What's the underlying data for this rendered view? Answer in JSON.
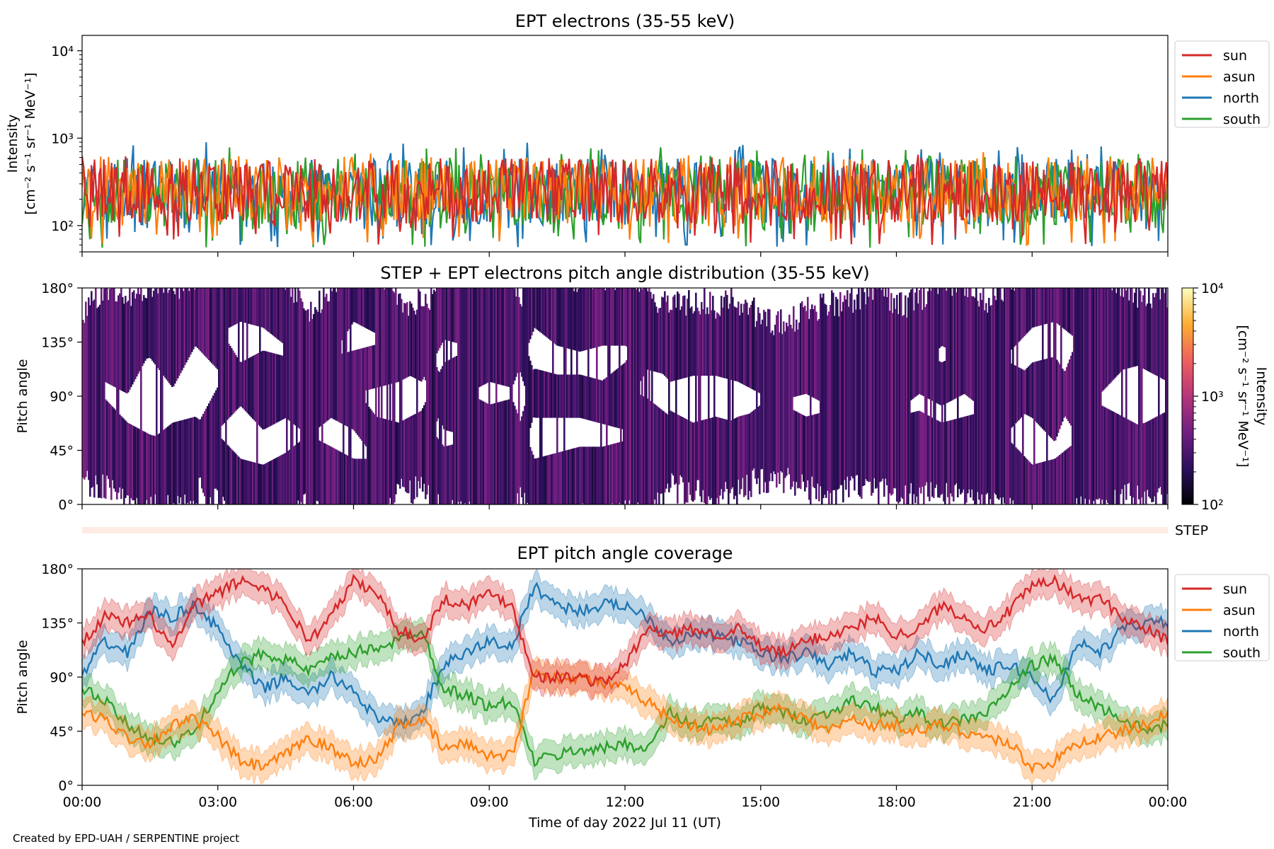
{
  "chart_data": [
    {
      "type": "line",
      "title": "EPT electrons (35-55 keV)",
      "ylabel_lines": [
        "Intensity",
        "[cm⁻² s⁻¹ sr⁻¹ MeV⁻¹]"
      ],
      "yscale": "log",
      "ylim": [
        50,
        15000
      ],
      "yticks": [
        "10⁴",
        "10³",
        "10²"
      ],
      "xlim_hours": [
        0,
        24
      ],
      "legend": "upper-right-outside",
      "series": [
        {
          "name": "sun",
          "color": "#d62728",
          "typical": 250,
          "low": 60,
          "high": 650
        },
        {
          "name": "asun",
          "color": "#ff7f0e",
          "typical": 260,
          "low": 60,
          "high": 700
        },
        {
          "name": "north",
          "color": "#1f77b4",
          "typical": 250,
          "low": 55,
          "high": 900
        },
        {
          "name": "south",
          "color": "#2ca02c",
          "typical": 240,
          "low": 55,
          "high": 800
        }
      ]
    },
    {
      "type": "heatmap",
      "title": "STEP + EPT electrons pitch angle distribution (35-55 keV)",
      "ylabel": "Pitch angle",
      "ylim": [
        0,
        180
      ],
      "yticks": [
        "180°",
        "135°",
        "90°",
        "45°",
        "0°"
      ],
      "colorbar": {
        "label_lines": [
          "Intensity",
          "[cm⁻² s⁻¹ sr⁻¹ MeV⁻¹]"
        ],
        "scale": "log",
        "range": [
          100,
          10000
        ],
        "ticks": [
          "10⁴",
          "10³",
          "10²"
        ],
        "colors": [
          "#000004",
          "#2c105c",
          "#711f81",
          "#b63679",
          "#ee605e",
          "#fdae32",
          "#fcfdbf"
        ]
      },
      "typical_intensity": 300
    },
    {
      "type": "bar",
      "label": "STEP",
      "color": "#fdebe4"
    },
    {
      "type": "line",
      "title": "EPT pitch angle coverage",
      "ylabel": "Pitch angle",
      "ylim": [
        0,
        180
      ],
      "yticks": [
        "180°",
        "135°",
        "90°",
        "45°",
        "0°"
      ],
      "xlabel": "Time of day 2022 Jul 11 (UT)",
      "xticks": [
        "00:00",
        "03:00",
        "06:00",
        "09:00",
        "12:00",
        "15:00",
        "18:00",
        "21:00",
        "00:00"
      ],
      "legend": "upper-right-outside",
      "band_halfwidth_deg": 12,
      "series": [
        {
          "name": "sun",
          "color": "#d62728",
          "x": [
            0,
            0.5,
            1,
            1.5,
            2,
            2.5,
            3,
            3.5,
            4,
            4.5,
            5,
            5.5,
            6,
            6.5,
            7,
            7.5,
            8,
            8.5,
            9,
            9.5,
            10,
            10.5,
            11,
            11.5,
            12,
            12.5,
            13,
            13.5,
            14,
            14.5,
            15,
            15.5,
            16,
            16.5,
            17,
            17.5,
            18,
            18.5,
            19,
            19.5,
            20,
            20.5,
            21,
            21.5,
            22,
            22.5,
            23,
            23.5,
            24
          ],
          "y": [
            120,
            140,
            135,
            140,
            115,
            150,
            160,
            170,
            165,
            150,
            120,
            140,
            170,
            160,
            130,
            120,
            155,
            150,
            160,
            150,
            90,
            90,
            90,
            85,
            100,
            130,
            125,
            130,
            125,
            130,
            115,
            110,
            120,
            125,
            130,
            140,
            125,
            130,
            150,
            140,
            130,
            145,
            165,
            170,
            155,
            155,
            140,
            130,
            120
          ]
        },
        {
          "name": "asun",
          "color": "#ff7f0e",
          "x": [
            0,
            0.5,
            1,
            1.5,
            2,
            2.5,
            3,
            3.5,
            4,
            4.5,
            5,
            5.5,
            6,
            6.5,
            7,
            7.5,
            8,
            8.5,
            9,
            9.5,
            10,
            10.5,
            11,
            11.5,
            12,
            12.5,
            13,
            13.5,
            14,
            14.5,
            15,
            15.5,
            16,
            16.5,
            17,
            17.5,
            18,
            18.5,
            19,
            19.5,
            20,
            20.5,
            21,
            21.5,
            22,
            22.5,
            23,
            23.5,
            24
          ],
          "y": [
            60,
            55,
            40,
            35,
            50,
            55,
            40,
            20,
            15,
            25,
            40,
            30,
            20,
            20,
            50,
            55,
            30,
            35,
            25,
            25,
            95,
            90,
            90,
            85,
            80,
            70,
            55,
            50,
            45,
            55,
            60,
            65,
            55,
            45,
            55,
            50,
            50,
            45,
            50,
            45,
            40,
            35,
            15,
            20,
            35,
            40,
            45,
            50,
            60
          ]
        },
        {
          "name": "north",
          "color": "#1f77b4",
          "x": [
            0,
            0.5,
            1,
            1.5,
            2,
            2.5,
            3,
            3.5,
            4,
            4.5,
            5,
            5.5,
            6,
            6.5,
            7,
            7.5,
            8,
            8.5,
            9,
            9.5,
            10,
            10.5,
            11,
            11.5,
            12,
            12.5,
            13,
            13.5,
            14,
            14.5,
            15,
            15.5,
            16,
            16.5,
            17,
            17.5,
            18,
            18.5,
            19,
            19.5,
            20,
            20.5,
            21,
            21.5,
            22,
            22.5,
            23,
            23.5,
            24
          ],
          "y": [
            90,
            120,
            110,
            145,
            140,
            150,
            130,
            100,
            80,
            90,
            75,
            90,
            80,
            55,
            50,
            60,
            100,
            110,
            120,
            115,
            165,
            150,
            145,
            150,
            150,
            140,
            120,
            125,
            125,
            120,
            110,
            105,
            110,
            100,
            110,
            95,
            95,
            110,
            100,
            110,
            95,
            100,
            90,
            70,
            120,
            110,
            130,
            135,
            135
          ]
        },
        {
          "name": "south",
          "color": "#2ca02c",
          "x": [
            0,
            0.5,
            1,
            1.5,
            2,
            2.5,
            3,
            3.5,
            4,
            4.5,
            5,
            5.5,
            6,
            6.5,
            7,
            7.5,
            8,
            8.5,
            9,
            9.5,
            10,
            10.5,
            11,
            11.5,
            12,
            12.5,
            13,
            13.5,
            14,
            14.5,
            15,
            15.5,
            16,
            16.5,
            17,
            17.5,
            18,
            18.5,
            19,
            19.5,
            20,
            20.5,
            21,
            21.5,
            22,
            22.5,
            23,
            23.5,
            24
          ],
          "y": [
            80,
            70,
            50,
            40,
            35,
            45,
            80,
            100,
            110,
            105,
            95,
            105,
            110,
            115,
            120,
            130,
            80,
            75,
            65,
            70,
            20,
            25,
            30,
            30,
            35,
            30,
            60,
            50,
            55,
            50,
            65,
            60,
            55,
            60,
            70,
            65,
            55,
            60,
            50,
            55,
            60,
            80,
            100,
            105,
            75,
            65,
            55,
            45,
            50
          ]
        }
      ]
    }
  ],
  "footer": "Created by EPD-UAH / SERPENTINE project"
}
